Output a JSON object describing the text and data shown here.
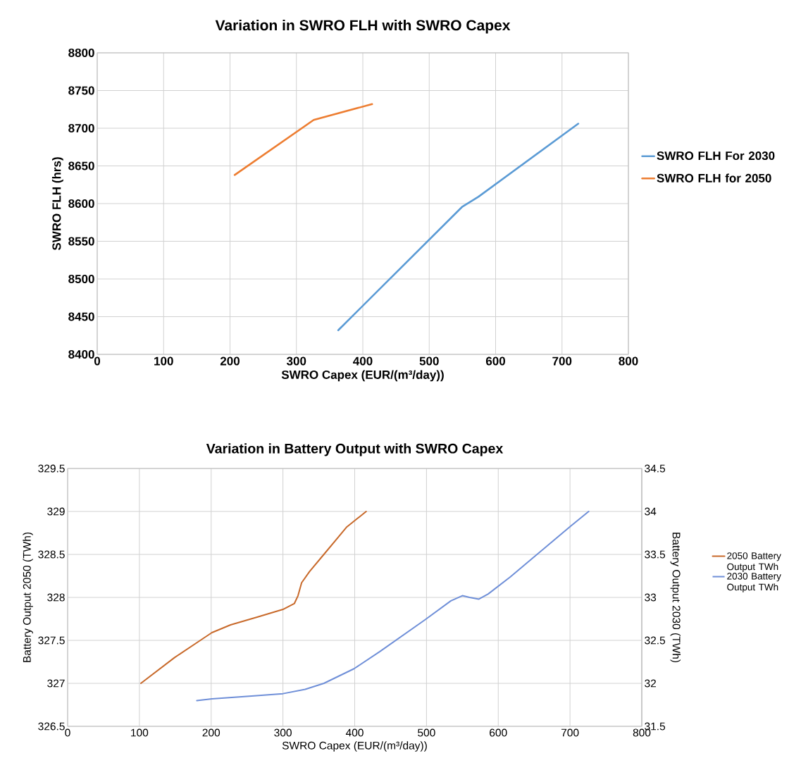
{
  "chart_data": [
    {
      "type": "line",
      "title": "Variation in SWRO FLH with SWRO Capex",
      "xlabel": "SWRO Capex (EUR/(m³/day))",
      "ylabel": "SWRO FLH (hrs)",
      "xlim": [
        0,
        800
      ],
      "xticks": [
        0,
        100,
        200,
        300,
        400,
        500,
        600,
        700,
        800
      ],
      "ylim": [
        8400,
        8800
      ],
      "yticks": [
        8400,
        8450,
        8500,
        8550,
        8600,
        8650,
        8700,
        8750,
        8800
      ],
      "grid": true,
      "legend": "right",
      "series": [
        {
          "name": "SWRO FLH For 2030",
          "color": "#5b9bd5",
          "x": [
            363,
            550,
            574,
            724.5
          ],
          "values": [
            8432,
            8596,
            8609,
            8706
          ]
        },
        {
          "name": "SWRO FLH for 2050",
          "color": "#ed7d31",
          "x": [
            207,
            326,
            414
          ],
          "values": [
            8638,
            8711,
            8732
          ]
        }
      ]
    },
    {
      "type": "line",
      "title": "Variation in Battery Output with SWRO Capex",
      "xlabel": "SWRO Capex (EUR/(m³/day))",
      "ylabel": "Battery Output 2050  (TWh)",
      "y2label": "Battery Output 2030  (TWh)",
      "xlim": [
        0,
        800
      ],
      "xticks": [
        0,
        100,
        200,
        300,
        400,
        500,
        600,
        700,
        800
      ],
      "ylim": [
        326.5,
        329.5
      ],
      "yticks": [
        326.5,
        327,
        327.5,
        328,
        328.5,
        329,
        329.5
      ],
      "y2lim": [
        31.5,
        34.5
      ],
      "y2ticks": [
        31.5,
        32,
        32.5,
        33,
        33.5,
        34,
        34.5
      ],
      "grid": true,
      "legend": "right",
      "series": [
        {
          "name": "2050 Battery Output TWh",
          "color": "#c8692a",
          "axis": "y",
          "x": [
            102,
            149,
            183,
            201,
            227,
            264,
            300,
            316,
            321,
            326,
            337,
            357,
            389,
            416
          ],
          "values": [
            327.0,
            327.3,
            327.49,
            327.59,
            327.68,
            327.77,
            327.86,
            327.93,
            328.02,
            328.17,
            328.3,
            328.5,
            328.82,
            329.0
          ]
        },
        {
          "name": "2030 Battery Output TWh",
          "color": "#6f8fd8",
          "axis": "y2",
          "x": [
            180,
            201,
            253,
            300,
            331,
            357,
            399,
            435,
            498,
            534,
            550,
            560,
            573,
            586,
            617,
            654,
            701,
            726
          ],
          "values": [
            31.8,
            31.82,
            31.85,
            31.88,
            31.93,
            32.0,
            32.17,
            32.37,
            32.74,
            32.96,
            33.02,
            33.0,
            32.98,
            33.04,
            33.24,
            33.5,
            33.83,
            34.0
          ]
        }
      ]
    }
  ]
}
